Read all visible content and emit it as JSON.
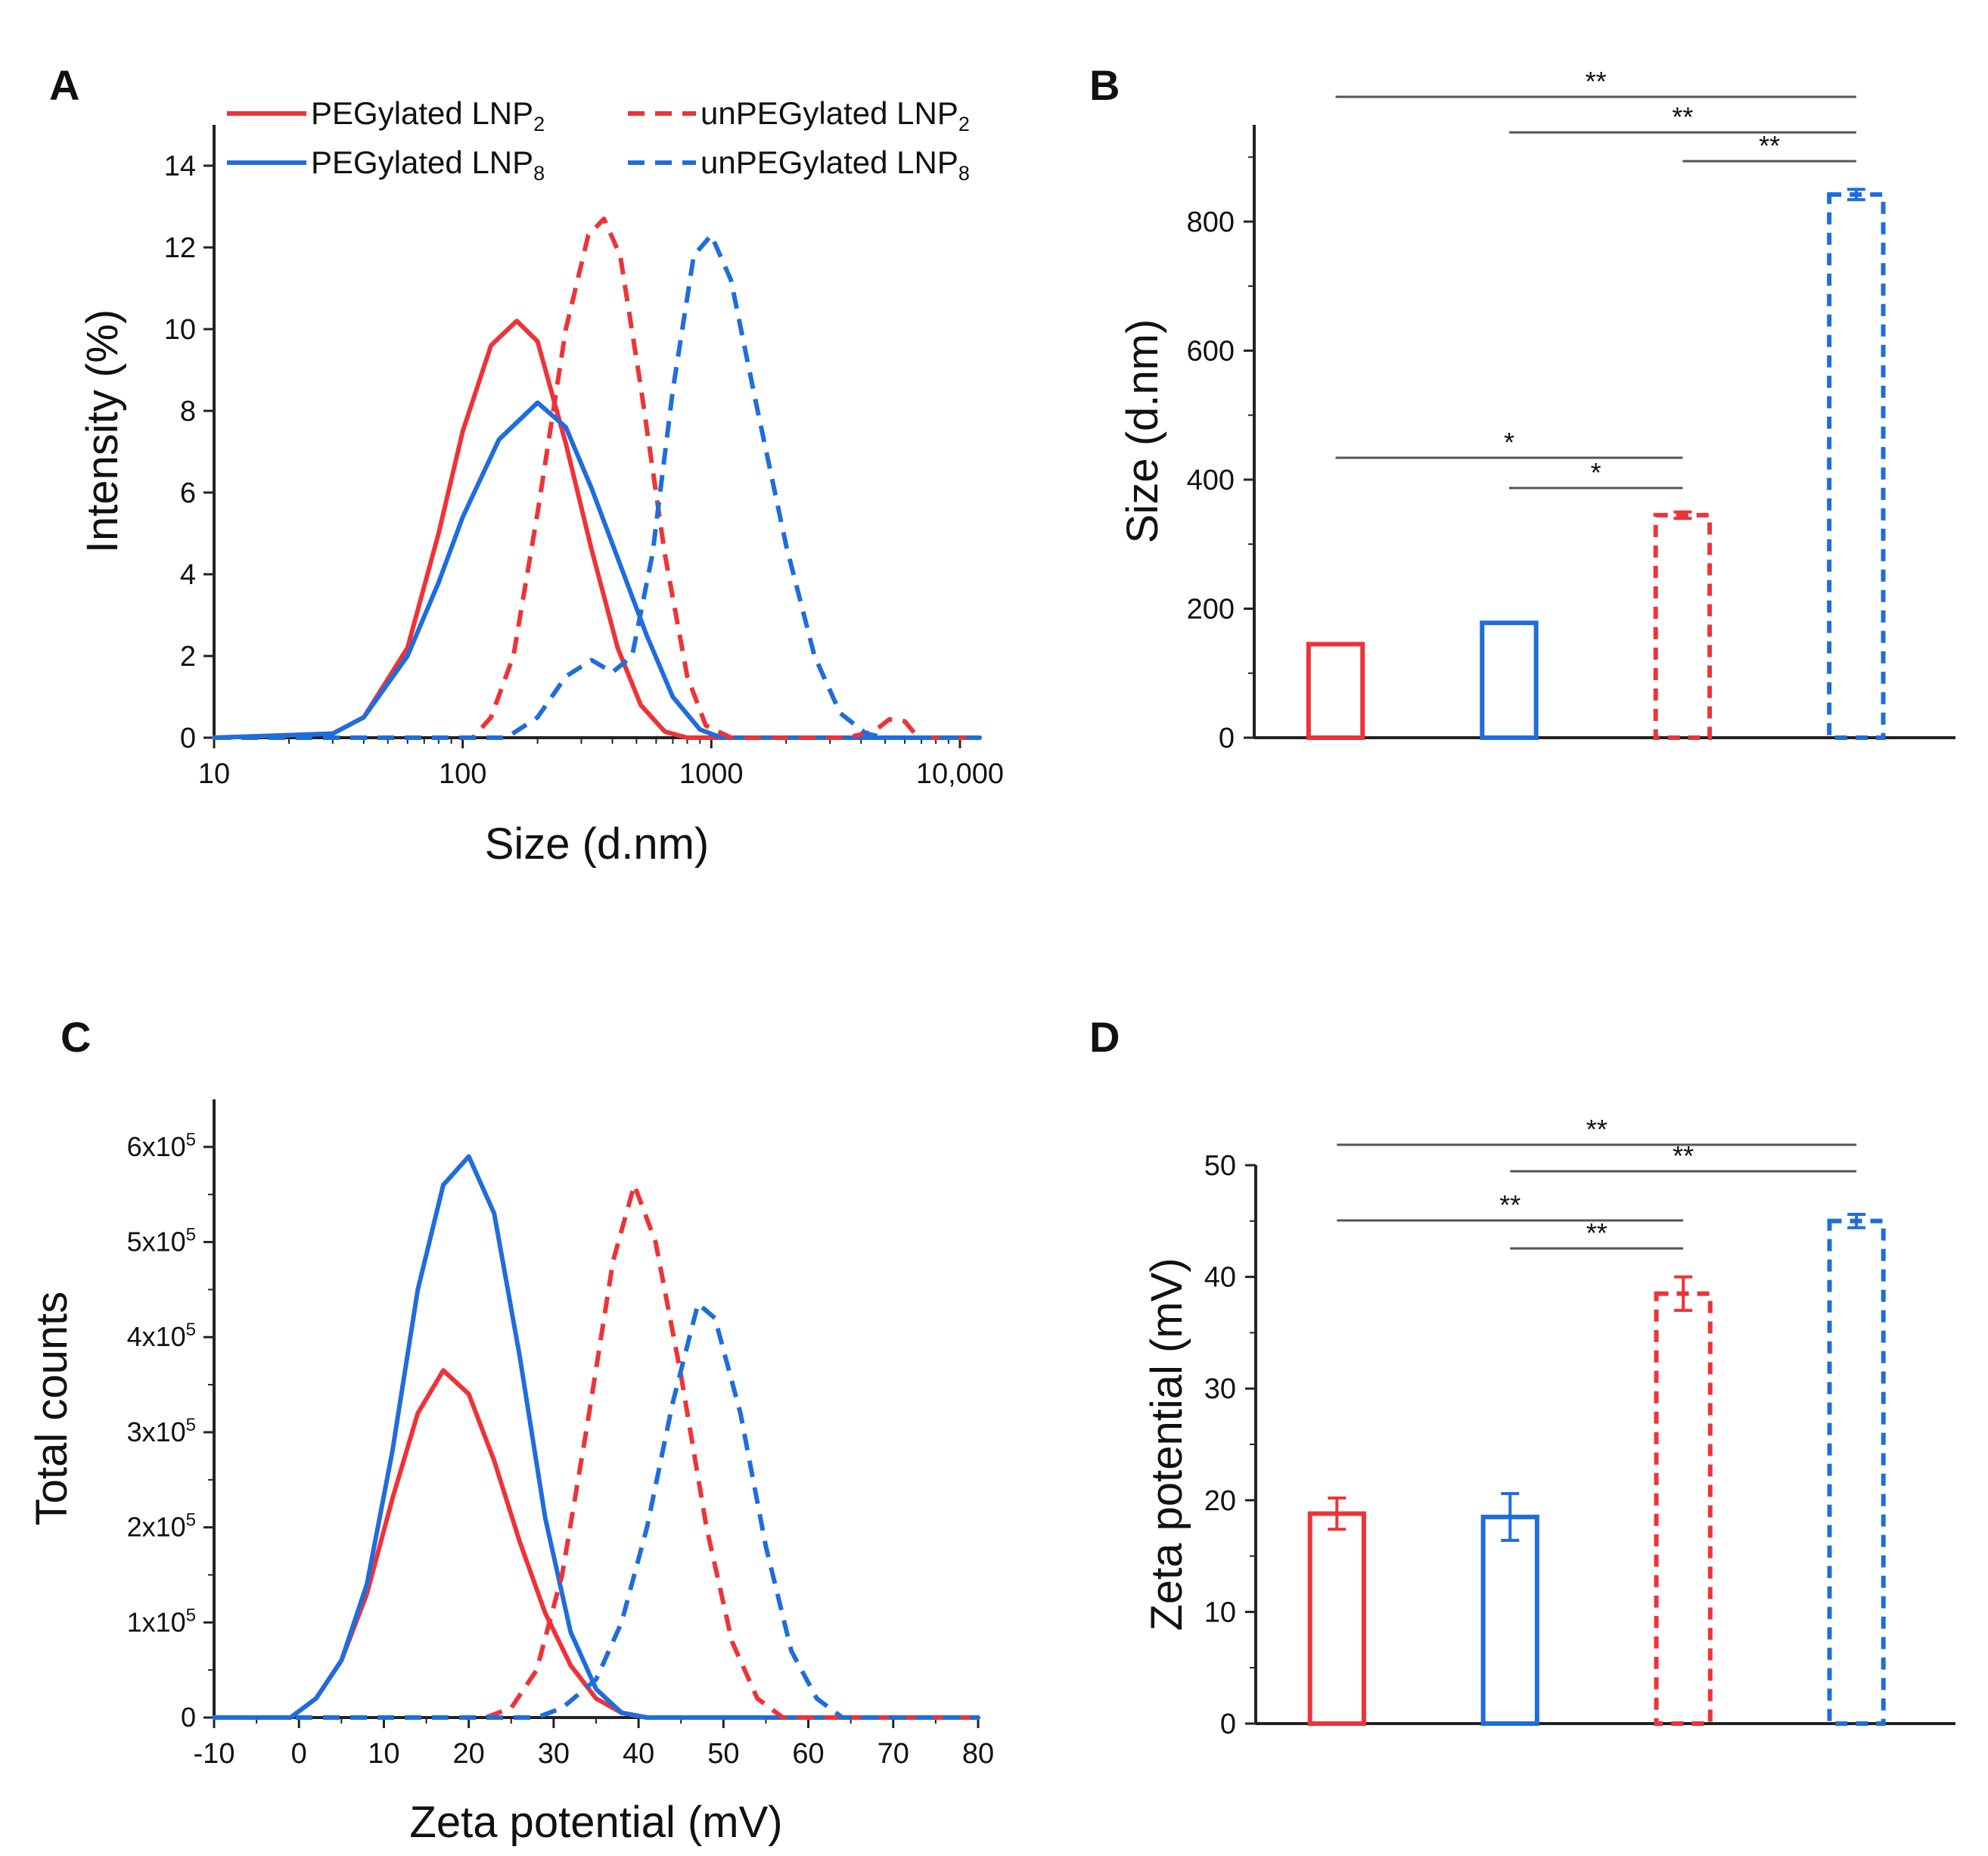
{
  "colors": {
    "lnp2": "#ee3338",
    "lnp8": "#1f6ddd",
    "axis": "#222222",
    "bracket": "#555555"
  },
  "panels": {
    "A": {
      "letter": "A"
    },
    "B": {
      "letter": "B"
    },
    "C": {
      "letter": "C"
    },
    "D": {
      "letter": "D"
    }
  },
  "legend": [
    {
      "text": "PEGylated  LNP",
      "sub": "2",
      "color": "lnp2",
      "dashed": false
    },
    {
      "text": "PEGylated  LNP",
      "sub": "8",
      "color": "lnp8",
      "dashed": false
    },
    {
      "text": "unPEGylated  LNP",
      "sub": "2",
      "color": "lnp2",
      "dashed": true
    },
    {
      "text": "unPEGylated  LNP",
      "sub": "8",
      "color": "lnp8",
      "dashed": true
    }
  ],
  "chart_data": [
    {
      "id": "A",
      "type": "line",
      "xlabel": "Size (d.nm)",
      "ylabel": "Intensity (%)",
      "xscale": "log",
      "xlim": [
        10,
        12000
      ],
      "ylim": [
        0,
        15
      ],
      "xticks": [
        10,
        100,
        1000,
        10000
      ],
      "xtick_labels": [
        "10",
        "100",
        "1000",
        "10,000"
      ],
      "yticks": [
        0,
        2,
        4,
        6,
        8,
        10,
        12,
        14
      ],
      "ytick_labels": [
        "0",
        "2",
        "4",
        "6",
        "8",
        "10",
        "12",
        "14"
      ],
      "series": [
        {
          "name": "PEGylated LNP2",
          "color": "lnp2",
          "dashed": false,
          "points": [
            [
              10,
              0
            ],
            [
              30,
              0.1
            ],
            [
              40,
              0.5
            ],
            [
              60,
              2.2
            ],
            [
              80,
              5
            ],
            [
              100,
              7.5
            ],
            [
              130,
              9.6
            ],
            [
              165,
              10.2
            ],
            [
              200,
              9.7
            ],
            [
              260,
              7.2
            ],
            [
              330,
              4.6
            ],
            [
              420,
              2.2
            ],
            [
              520,
              0.8
            ],
            [
              650,
              0.15
            ],
            [
              800,
              0
            ],
            [
              12000,
              0
            ]
          ]
        },
        {
          "name": "PEGylated LNP8",
          "color": "lnp8",
          "dashed": false,
          "points": [
            [
              10,
              0
            ],
            [
              30,
              0.1
            ],
            [
              40,
              0.5
            ],
            [
              60,
              2
            ],
            [
              80,
              3.8
            ],
            [
              100,
              5.4
            ],
            [
              140,
              7.3
            ],
            [
              200,
              8.2
            ],
            [
              260,
              7.6
            ],
            [
              330,
              6.1
            ],
            [
              420,
              4.4
            ],
            [
              550,
              2.5
            ],
            [
              700,
              1
            ],
            [
              900,
              0.2
            ],
            [
              1100,
              0
            ],
            [
              12000,
              0
            ]
          ]
        },
        {
          "name": "unPEGylated LNP2",
          "color": "lnp2",
          "dashed": true,
          "points": [
            [
              10,
              0
            ],
            [
              110,
              0
            ],
            [
              130,
              0.5
            ],
            [
              160,
              2
            ],
            [
              200,
              5.5
            ],
            [
              260,
              10
            ],
            [
              320,
              12.3
            ],
            [
              370,
              12.7
            ],
            [
              430,
              11.8
            ],
            [
              520,
              8.6
            ],
            [
              650,
              4.5
            ],
            [
              800,
              1.5
            ],
            [
              950,
              0.3
            ],
            [
              1200,
              0
            ],
            [
              3500,
              0
            ],
            [
              4500,
              0.15
            ],
            [
              5200,
              0.45
            ],
            [
              6000,
              0.4
            ],
            [
              6800,
              0
            ],
            [
              12000,
              0
            ]
          ]
        },
        {
          "name": "unPEGylated LNP8",
          "color": "lnp8",
          "dashed": true,
          "points": [
            [
              10,
              0
            ],
            [
              150,
              0
            ],
            [
              200,
              0.5
            ],
            [
              260,
              1.5
            ],
            [
              330,
              1.9
            ],
            [
              400,
              1.6
            ],
            [
              480,
              2
            ],
            [
              580,
              4.5
            ],
            [
              700,
              8.5
            ],
            [
              850,
              11.8
            ],
            [
              1000,
              12.3
            ],
            [
              1200,
              11.2
            ],
            [
              1500,
              8.3
            ],
            [
              2000,
              4.7
            ],
            [
              2600,
              2
            ],
            [
              3300,
              0.6
            ],
            [
              4200,
              0.1
            ],
            [
              5000,
              0
            ],
            [
              12000,
              0
            ]
          ]
        }
      ]
    },
    {
      "id": "B",
      "type": "bar",
      "ylabel": "Size (d.nm)",
      "ylim": [
        0,
        950
      ],
      "yticks": [
        0,
        200,
        400,
        600,
        800
      ],
      "ytick_labels": [
        "0",
        "200",
        "400",
        "600",
        "800"
      ],
      "bars": [
        {
          "name": "PEGylated LNP2",
          "value": 145,
          "error": 0,
          "color": "lnp2",
          "dashed": false
        },
        {
          "name": "PEGylated LNP8",
          "value": 178,
          "error": 0,
          "color": "lnp8",
          "dashed": false
        },
        {
          "name": "unPEGylated LNP2",
          "value": 345,
          "error": 5,
          "color": "lnp2",
          "dashed": true
        },
        {
          "name": "unPEGylated LNP8",
          "value": 842,
          "error": 8,
          "color": "lnp8",
          "dashed": true
        }
      ],
      "significance": [
        {
          "from": 0,
          "to": 3,
          "label": "**"
        },
        {
          "from": 1,
          "to": 3,
          "label": "**"
        },
        {
          "from": 2,
          "to": 3,
          "label": "**"
        },
        {
          "from": 0,
          "to": 2,
          "label": "*"
        },
        {
          "from": 1,
          "to": 2,
          "label": "*"
        }
      ]
    },
    {
      "id": "C",
      "type": "line",
      "xlabel": "Zeta potential (mV)",
      "ylabel": "Total counts",
      "xlim": [
        -10,
        80
      ],
      "ylim": [
        0,
        650000
      ],
      "xticks": [
        -10,
        0,
        10,
        20,
        30,
        40,
        50,
        60,
        70,
        80
      ],
      "xtick_labels": [
        "-10",
        "0",
        "10",
        "20",
        "30",
        "40",
        "50",
        "60",
        "70",
        "80"
      ],
      "yticks": [
        0,
        100000,
        200000,
        300000,
        400000,
        500000,
        600000
      ],
      "ytick_labels": [
        {
          "base": "0",
          "exp": ""
        },
        {
          "base": "1x10",
          "exp": "5"
        },
        {
          "base": "2x10",
          "exp": "5"
        },
        {
          "base": "3x10",
          "exp": "5"
        },
        {
          "base": "4x10",
          "exp": "5"
        },
        {
          "base": "5x10",
          "exp": "5"
        },
        {
          "base": "6x10",
          "exp": "5"
        }
      ],
      "series": [
        {
          "name": "PEGylated LNP2",
          "color": "lnp2",
          "dashed": false,
          "points": [
            [
              -10,
              0
            ],
            [
              -1,
              0
            ],
            [
              2,
              20000
            ],
            [
              5,
              60000
            ],
            [
              8,
              130000
            ],
            [
              11,
              230000
            ],
            [
              14,
              320000
            ],
            [
              17,
              365000
            ],
            [
              20,
              340000
            ],
            [
              23,
              270000
            ],
            [
              26,
              185000
            ],
            [
              29,
              110000
            ],
            [
              32,
              55000
            ],
            [
              35,
              20000
            ],
            [
              38,
              5000
            ],
            [
              41,
              0
            ],
            [
              80,
              0
            ]
          ]
        },
        {
          "name": "PEGylated LNP8",
          "color": "lnp8",
          "dashed": false,
          "points": [
            [
              -10,
              0
            ],
            [
              -1,
              0
            ],
            [
              2,
              20000
            ],
            [
              5,
              60000
            ],
            [
              8,
              140000
            ],
            [
              11,
              280000
            ],
            [
              14,
              450000
            ],
            [
              17,
              560000
            ],
            [
              20,
              590000
            ],
            [
              23,
              530000
            ],
            [
              26,
              380000
            ],
            [
              29,
              210000
            ],
            [
              32,
              90000
            ],
            [
              35,
              30000
            ],
            [
              38,
              5000
            ],
            [
              41,
              0
            ],
            [
              80,
              0
            ]
          ]
        },
        {
          "name": "unPEGylated LNP2",
          "color": "lnp2",
          "dashed": true,
          "points": [
            [
              -10,
              0
            ],
            [
              22,
              0
            ],
            [
              25,
              10000
            ],
            [
              28,
              50000
            ],
            [
              31,
              150000
            ],
            [
              34,
              310000
            ],
            [
              37,
              480000
            ],
            [
              39.5,
              560000
            ],
            [
              42,
              500000
            ],
            [
              45,
              360000
            ],
            [
              48,
              200000
            ],
            [
              51,
              80000
            ],
            [
              54,
              20000
            ],
            [
              57,
              0
            ],
            [
              80,
              0
            ]
          ]
        },
        {
          "name": "unPEGylated LNP8",
          "color": "lnp8",
          "dashed": true,
          "points": [
            [
              -10,
              0
            ],
            [
              28,
              0
            ],
            [
              31,
              10000
            ],
            [
              35,
              40000
            ],
            [
              38,
              100000
            ],
            [
              41,
              200000
            ],
            [
              44,
              330000
            ],
            [
              47,
              435000
            ],
            [
              49,
              420000
            ],
            [
              52,
              320000
            ],
            [
              55,
              180000
            ],
            [
              58,
              70000
            ],
            [
              61,
              20000
            ],
            [
              64,
              0
            ],
            [
              80,
              0
            ]
          ]
        }
      ]
    },
    {
      "id": "D",
      "type": "bar",
      "ylabel": "Zeta potential (mV)",
      "ylim": [
        0,
        50
      ],
      "yticks": [
        0,
        10,
        20,
        30,
        40,
        50
      ],
      "ytick_labels": [
        "0",
        "10",
        "20",
        "30",
        "40",
        "50"
      ],
      "bars": [
        {
          "name": "PEGylated LNP2",
          "value": 18.8,
          "error": 1.4,
          "color": "lnp2",
          "dashed": false
        },
        {
          "name": "PEGylated LNP8",
          "value": 18.5,
          "error": 2.1,
          "color": "lnp8",
          "dashed": false
        },
        {
          "name": "unPEGylated LNP2",
          "value": 38.5,
          "error": 1.5,
          "color": "lnp2",
          "dashed": true
        },
        {
          "name": "unPEGylated LNP8",
          "value": 45.0,
          "error": 0.6,
          "color": "lnp8",
          "dashed": true
        }
      ],
      "significance": [
        {
          "from": 0,
          "to": 3,
          "label": "**"
        },
        {
          "from": 1,
          "to": 3,
          "label": "**"
        },
        {
          "from": 0,
          "to": 2,
          "label": "**"
        },
        {
          "from": 1,
          "to": 2,
          "label": "**"
        }
      ]
    }
  ]
}
